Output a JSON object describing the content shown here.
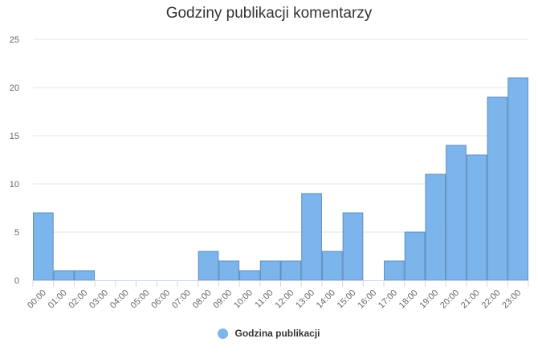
{
  "chart_data": {
    "type": "bar",
    "title": "Godziny publikacji komentarzy",
    "categories": [
      "00:00",
      "01:00",
      "02:00",
      "03:00",
      "04:00",
      "05:00",
      "06:00",
      "07:00",
      "08:00",
      "09:00",
      "10:00",
      "11:00",
      "12:00",
      "13:00",
      "14:00",
      "15:00",
      "16:00",
      "17:00",
      "18:00",
      "19:00",
      "20:00",
      "21:00",
      "22:00",
      "23:00"
    ],
    "series": [
      {
        "name": "Godzina publikacji",
        "color": "#7cb5ec",
        "values": [
          7,
          1,
          1,
          0,
          0,
          0,
          0,
          0,
          3,
          2,
          1,
          2,
          2,
          9,
          3,
          7,
          0,
          2,
          5,
          11,
          14,
          13,
          19,
          21
        ]
      }
    ],
    "ylim": [
      0,
      25
    ],
    "yticks": [
      0,
      5,
      10,
      15,
      20,
      25
    ],
    "grid": true,
    "legend": "bottom-center"
  }
}
